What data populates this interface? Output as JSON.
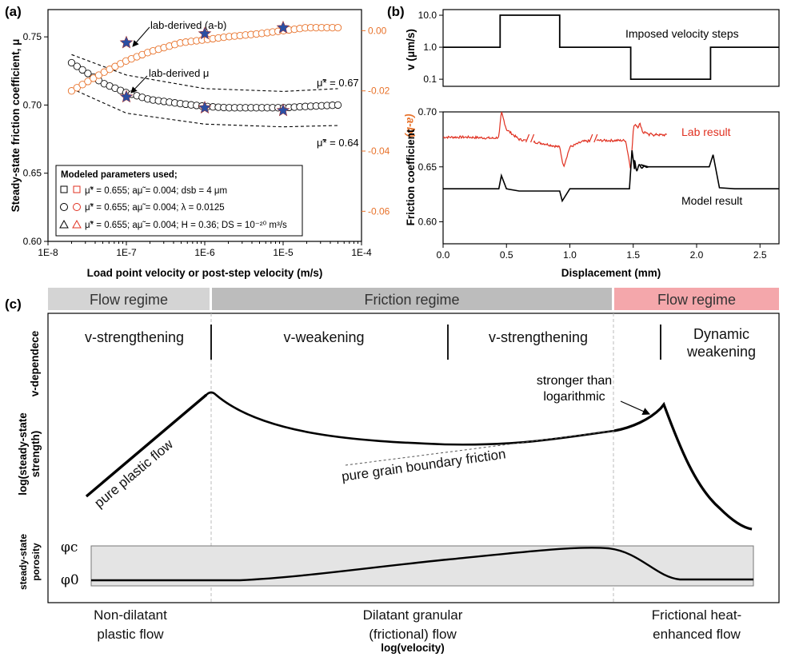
{
  "panels": {
    "a": "(a)",
    "b": "(b)",
    "c": "(c)"
  },
  "panel_a": {
    "ylabel": "Steady-state friction coefficient, μ",
    "y2label": "(a-b)",
    "xlabel": "Load point velocity or post-step velocity (m/s)",
    "xticks": [
      "1E-8",
      "1E-7",
      "1E-6",
      "1E-5",
      "1E-4"
    ],
    "yticks": [
      "0.60",
      "0.65",
      "0.70",
      "0.75"
    ],
    "y2ticks": [
      "0.00",
      "-0.02",
      "-0.04",
      "-0.06"
    ],
    "ann_ab": "lab-derived (a-b)",
    "ann_mu": "lab-derived μ",
    "line_067": "μ̃* = 0.67",
    "line_064": "μ̃* = 0.64",
    "legend_title": "Modeled parameters used;",
    "legend": [
      "μ̃* = 0.655;  aμ̃ = 0.004;  dsb = 4 μm",
      "μ̃* = 0.655;  aμ̃ = 0.004;  λ = 0.0125",
      "μ̃* = 0.655;  aμ̃ = 0.004;  H = 0.36;  DS = 10⁻²⁰ m³/s"
    ],
    "colors": {
      "black": "#000000",
      "orange": "#e8732c",
      "red": "#e03020",
      "star": "#2b4fa3"
    }
  },
  "panel_b": {
    "top_ylabel": "v (μm/s)",
    "top_yticks": [
      "10.0",
      "1.0",
      "0.1"
    ],
    "top_ann": "Imposed velocity steps",
    "bot_ylabel": "Friction coefficient",
    "bot_yticks": [
      "0.70",
      "0.65",
      "0.60"
    ],
    "xticks": [
      "0.0",
      "0.5",
      "1.0",
      "1.5",
      "2.0",
      "2.5"
    ],
    "xlabel": "Displacement (mm)",
    "lab_label": "Lab result",
    "model_label": "Model result"
  },
  "panel_c": {
    "regimes": [
      "Flow regime",
      "Friction regime",
      "Flow regime"
    ],
    "regime_colors": [
      "#d4d4d4",
      "#bcbcbc",
      "#f4a7ab"
    ],
    "vdep_label": "v-dependece",
    "vdep": [
      "v-strengthening",
      "v-weakening",
      "v-strengthening"
    ],
    "vdep_last": [
      "Dynamic",
      "weakening"
    ],
    "strength_label": [
      "log(steady-state",
      "strength)"
    ],
    "porosity_label": [
      "steady-state",
      "porosity"
    ],
    "ann_plastic": "pure plastic flow",
    "ann_gb": "pure grain boundary friction",
    "ann_strong": [
      "stronger than",
      "logarithmic"
    ],
    "phi_c": "φc",
    "phi_0": "φ0",
    "flows": [
      [
        "Non-dilatant",
        "plastic flow"
      ],
      [
        "Dilatant granular",
        "(frictional) flow"
      ],
      [
        "Frictional heat-",
        "enhanced flow"
      ]
    ],
    "xlabel": "log(velocity)"
  },
  "chart_data": [
    {
      "type": "scatter",
      "panel": "a",
      "xscale": "log",
      "xlim": [
        1e-08,
        0.0001
      ],
      "ylim": [
        0.6,
        0.77
      ],
      "y2lim": [
        -0.07,
        0.007
      ],
      "xlabel": "Load point velocity or post-step velocity (m/s)",
      "ylabel": "Steady-state friction coefficient, μ",
      "y2label": "(a-b)",
      "series": [
        {
          "name": "lab-derived μ",
          "axis": "left",
          "x": [
            1e-07,
            1e-06,
            1e-05
          ],
          "y": [
            0.706,
            0.698,
            0.696
          ]
        },
        {
          "name": "lab-derived (a-b)",
          "axis": "right",
          "x": [
            1e-07,
            1e-06,
            1e-05
          ],
          "y": [
            -0.004,
            -0.001,
            0.001
          ]
        },
        {
          "axis": "left",
          "x": [
            2e-08,
            5e-08,
            1e-07,
            2e-07,
            5e-07,
            1e-06,
            2e-06,
            5e-06,
            1e-05,
            2e-05,
            5e-05
          ],
          "y": [
            0.731,
            0.716,
            0.709,
            0.704,
            0.701,
            0.699,
            0.698,
            0.698,
            0.698,
            0.699,
            0.7
          ]
        },
        {
          "axis": "right",
          "x": [
            2e-08,
            5e-08,
            1e-07,
            2e-07,
            5e-07,
            1e-06,
            2e-06,
            5e-06,
            1e-05,
            2e-05,
            5e-05
          ],
          "y": [
            -0.02,
            -0.014,
            -0.01,
            -0.007,
            -0.004,
            -0.003,
            -0.002,
            -0.001,
            0.0,
            0.001,
            0.001
          ]
        },
        {
          "name": "μ̃* = 0.67",
          "axis": "left",
          "x": [
            2e-08,
            1e-07,
            1e-06,
            1e-05,
            5e-05
          ],
          "y": [
            0.737,
            0.722,
            0.712,
            0.71,
            0.712
          ]
        },
        {
          "name": "μ̃* = 0.64",
          "axis": "left",
          "x": [
            2e-08,
            1e-07,
            1e-06,
            1e-05,
            5e-05
          ],
          "y": [
            0.712,
            0.694,
            0.686,
            0.684,
            0.685
          ]
        }
      ]
    },
    {
      "type": "line",
      "panel": "b-top",
      "yscale": "log",
      "ylabel": "v (μm/s)",
      "xlim": [
        0,
        2.65
      ],
      "ylim": [
        0.06,
        15
      ],
      "series": [
        {
          "name": "Imposed velocity steps",
          "x": [
            0,
            0.45,
            0.45,
            0.92,
            0.92,
            1.48,
            1.48,
            2.11,
            2.11,
            2.65
          ],
          "y": [
            1,
            1,
            10,
            10,
            1,
            1,
            0.1,
            0.1,
            1,
            1
          ]
        }
      ]
    },
    {
      "type": "line",
      "panel": "b-bottom",
      "xlabel": "Displacement (mm)",
      "ylabel": "Friction coefficient",
      "xlim": [
        0,
        2.65
      ],
      "ylim": [
        0.58,
        0.7
      ],
      "series": [
        {
          "name": "Lab result",
          "x": [
            0,
            0.2,
            0.4,
            0.44,
            0.46,
            0.5,
            0.6,
            0.7,
            0.8,
            0.92,
            0.95,
            1.0,
            1.1,
            1.2,
            1.3,
            1.44,
            1.48,
            1.5,
            1.53,
            1.6,
            1.7,
            1.77
          ],
          "y": [
            0.677,
            0.677,
            0.676,
            0.677,
            0.7,
            0.684,
            0.675,
            0.673,
            0.671,
            0.668,
            0.65,
            0.668,
            0.673,
            0.674,
            0.674,
            0.674,
            0.648,
            0.682,
            0.69,
            0.68,
            0.679,
            0.679
          ]
        },
        {
          "name": "Model result",
          "x": [
            0,
            0.44,
            0.46,
            0.5,
            0.6,
            0.8,
            0.92,
            0.94,
            1.0,
            1.2,
            1.47,
            1.49,
            1.51,
            1.56,
            1.6,
            1.8,
            2.1,
            2.13,
            2.18,
            2.3,
            2.65
          ],
          "y": [
            0.63,
            0.63,
            0.642,
            0.63,
            0.628,
            0.628,
            0.628,
            0.619,
            0.63,
            0.63,
            0.63,
            0.665,
            0.648,
            0.652,
            0.65,
            0.65,
            0.65,
            0.661,
            0.631,
            0.63,
            0.63
          ]
        }
      ]
    }
  ]
}
